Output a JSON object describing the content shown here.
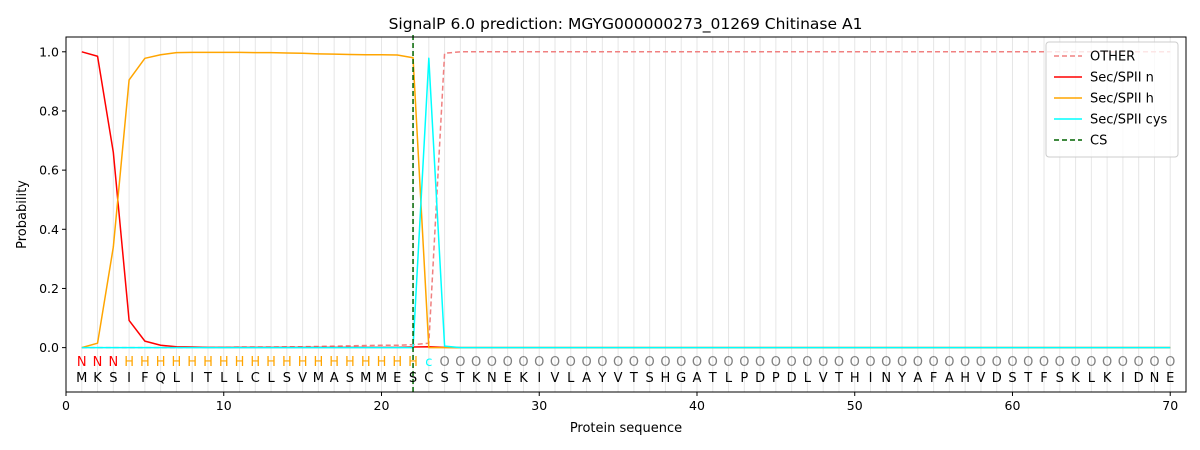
{
  "chart_data": {
    "type": "line",
    "title": "SignalP 6.0 prediction: MGYG000000273_01269 Chitinase A1",
    "xlabel": "Protein sequence",
    "ylabel": "Probability",
    "xlim": [
      0,
      71
    ],
    "ylim": [
      -0.15,
      1.05
    ],
    "xticks": [
      0,
      10,
      20,
      30,
      40,
      50,
      60,
      70
    ],
    "yticks": [
      0.0,
      0.2,
      0.4,
      0.6,
      0.8,
      1.0
    ],
    "xtick_labels": [
      "0",
      "10",
      "20",
      "30",
      "40",
      "50",
      "60",
      "70"
    ],
    "ytick_labels": [
      "0.0",
      "0.2",
      "0.4",
      "0.6",
      "0.8",
      "1.0"
    ],
    "legend_position": "top-right",
    "sequence": "MKSIFQLITLLCLSVMASMMESCSTKNEKIVLAYVTSHGATLPDPDLVTHINYAFAHVDSTFSKLKIDNE",
    "region_labels": "NNNHHHHHHHHHHHHHHHHHHHCOOOOOOOOOOOOOOOOOOOOOOOOOOOOOOOOOOOOOOOOOOOOOOO",
    "region_colors": {
      "N": "#ff0000",
      "H": "#ffa500",
      "C": "#00ffff",
      "O": "#808080"
    },
    "region_glyphs": {
      "N": "N",
      "H": "H",
      "C": "c",
      "O": "O"
    },
    "cleavage_site": 22,
    "series": [
      {
        "name": "OTHER",
        "color": "#f08080",
        "style": "dashed",
        "values": [
          0.0,
          0.0,
          0.0,
          0.0,
          0.0,
          0.0,
          0.0,
          0.001,
          0.001,
          0.001,
          0.002,
          0.002,
          0.002,
          0.003,
          0.003,
          0.004,
          0.005,
          0.006,
          0.007,
          0.008,
          0.008,
          0.01,
          0.015,
          0.995,
          1.0,
          1.0,
          1.0,
          1.0,
          1.0,
          1.0,
          1.0,
          1.0,
          1.0,
          1.0,
          1.0,
          1.0,
          1.0,
          1.0,
          1.0,
          1.0,
          1.0,
          1.0,
          1.0,
          1.0,
          1.0,
          1.0,
          1.0,
          1.0,
          1.0,
          1.0,
          1.0,
          1.0,
          1.0,
          1.0,
          1.0,
          1.0,
          1.0,
          1.0,
          1.0,
          1.0,
          1.0,
          1.0,
          1.0,
          1.0,
          1.0,
          1.0,
          1.0,
          1.0,
          1.0,
          1.0
        ]
      },
      {
        "name": "Sec/SPII n",
        "color": "#ff0000",
        "style": "solid",
        "values": [
          1.0,
          0.985,
          0.66,
          0.092,
          0.022,
          0.008,
          0.003,
          0.002,
          0.001,
          0.001,
          0.001,
          0.001,
          0.001,
          0.001,
          0.001,
          0.001,
          0.001,
          0.001,
          0.001,
          0.001,
          0.001,
          0.002,
          0.003,
          0.001,
          0.0,
          0.0,
          0.0,
          0.0,
          0.0,
          0.0,
          0.0,
          0.0,
          0.0,
          0.0,
          0.0,
          0.0,
          0.0,
          0.0,
          0.0,
          0.0,
          0.0,
          0.0,
          0.0,
          0.0,
          0.0,
          0.0,
          0.0,
          0.0,
          0.0,
          0.0,
          0.0,
          0.0,
          0.0,
          0.0,
          0.0,
          0.0,
          0.0,
          0.0,
          0.0,
          0.0,
          0.0,
          0.0,
          0.0,
          0.0,
          0.0,
          0.0,
          0.0,
          0.0,
          0.0,
          0.0
        ]
      },
      {
        "name": "Sec/SPII h",
        "color": "#ffa500",
        "style": "solid",
        "values": [
          0.0,
          0.015,
          0.34,
          0.905,
          0.978,
          0.99,
          0.997,
          0.998,
          0.998,
          0.998,
          0.998,
          0.997,
          0.997,
          0.996,
          0.995,
          0.993,
          0.992,
          0.991,
          0.99,
          0.99,
          0.989,
          0.98,
          0.0,
          0.0,
          0.0,
          0.0,
          0.0,
          0.0,
          0.0,
          0.0,
          0.0,
          0.0,
          0.0,
          0.0,
          0.0,
          0.0,
          0.0,
          0.0,
          0.0,
          0.0,
          0.0,
          0.0,
          0.0,
          0.0,
          0.0,
          0.0,
          0.0,
          0.0,
          0.0,
          0.0,
          0.0,
          0.0,
          0.0,
          0.0,
          0.0,
          0.0,
          0.0,
          0.0,
          0.0,
          0.0,
          0.0,
          0.0,
          0.0,
          0.0,
          0.0,
          0.0,
          0.0,
          0.0,
          0.0,
          0.0
        ]
      },
      {
        "name": "Sec/SPII cys",
        "color": "#00ffff",
        "style": "solid",
        "values": [
          0.0,
          0.0,
          0.0,
          0.0,
          0.0,
          0.0,
          0.0,
          0.0,
          0.0,
          0.0,
          0.0,
          0.0,
          0.0,
          0.0,
          0.0,
          0.0,
          0.0,
          0.0,
          0.0,
          0.0,
          0.0,
          0.0,
          0.978,
          0.005,
          0.0,
          0.0,
          0.0,
          0.0,
          0.0,
          0.0,
          0.0,
          0.0,
          0.0,
          0.0,
          0.0,
          0.0,
          0.0,
          0.0,
          0.0,
          0.0,
          0.0,
          0.0,
          0.0,
          0.0,
          0.0,
          0.0,
          0.0,
          0.0,
          0.0,
          0.0,
          0.0,
          0.0,
          0.0,
          0.0,
          0.0,
          0.0,
          0.0,
          0.0,
          0.0,
          0.0,
          0.0,
          0.0,
          0.0,
          0.0,
          0.0,
          0.0,
          0.0,
          0.0,
          0.0,
          0.0
        ]
      },
      {
        "name": "CS",
        "color": "#006400",
        "style": "dashed"
      }
    ]
  }
}
